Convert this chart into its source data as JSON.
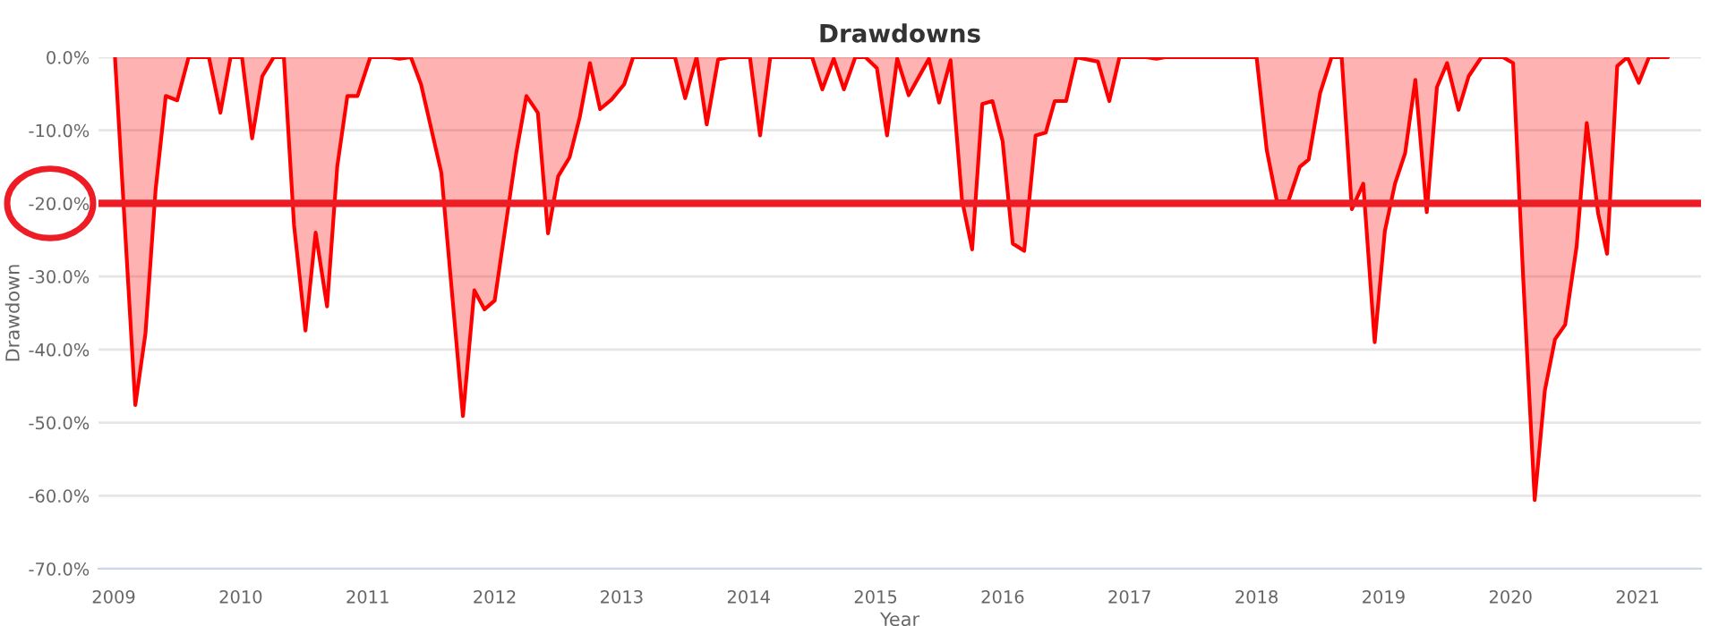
{
  "chart_data": {
    "type": "area",
    "title": "Drawdowns",
    "xlabel": "Year",
    "ylabel": "Drawdown",
    "series": [
      {
        "color": "#ff0000",
        "x": [
          2009.01,
          2009.17,
          2009.25,
          2009.33,
          2009.41,
          2009.5,
          2009.59,
          2009.75,
          2009.84,
          2009.92,
          2010.01,
          2010.09,
          2010.17,
          2010.26,
          2010.34,
          2010.42,
          2010.51,
          2010.59,
          2010.68,
          2010.76,
          2010.84,
          2010.92,
          2011.02,
          2011.18,
          2011.25,
          2011.34,
          2011.42,
          2011.58,
          2011.75,
          2011.84,
          2011.92,
          2012.0,
          2012.17,
          2012.25,
          2012.34,
          2012.42,
          2012.5,
          2012.59,
          2012.67,
          2012.75,
          2012.83,
          2012.92,
          2013.02,
          2013.09,
          2013.42,
          2013.5,
          2013.59,
          2013.67,
          2013.76,
          2013.84,
          2014.01,
          2014.09,
          2014.17,
          2014.5,
          2014.58,
          2014.67,
          2014.75,
          2014.84,
          2014.92,
          2015.01,
          2015.09,
          2015.17,
          2015.26,
          2015.42,
          2015.5,
          2015.59,
          2015.68,
          2015.76,
          2015.84,
          2015.92,
          2016.0,
          2016.08,
          2016.17,
          2016.26,
          2016.34,
          2016.41,
          2016.5,
          2016.58,
          2016.75,
          2016.84,
          2016.92,
          2017.13,
          2017.21,
          2017.28,
          2018.0,
          2018.08,
          2018.16,
          2018.25,
          2018.34,
          2018.41,
          2018.5,
          2018.59,
          2018.67,
          2018.75,
          2018.84,
          2018.93,
          2019.01,
          2019.09,
          2019.17,
          2019.25,
          2019.34,
          2019.42,
          2019.5,
          2019.59,
          2019.67,
          2019.77,
          2019.94,
          2020.02,
          2020.1,
          2020.19,
          2020.27,
          2020.35,
          2020.43,
          2020.52,
          2020.6,
          2020.69,
          2020.76,
          2020.84,
          2020.92,
          2021.01,
          2021.09,
          2021.24
        ],
        "values": [
          0,
          -47.6,
          -37.8,
          -18.1,
          -5.3,
          -5.9,
          0,
          0,
          -7.6,
          0,
          0,
          -11.1,
          -2.6,
          0,
          0,
          -23.0,
          -37.4,
          -24.0,
          -34.1,
          -15.0,
          -5.3,
          -5.3,
          0,
          0,
          -0.2,
          0,
          -3.7,
          -15.8,
          -49.1,
          -31.9,
          -34.5,
          -33.3,
          -13.1,
          -5.3,
          -7.6,
          -24.1,
          -16.3,
          -13.7,
          -8.2,
          -0.8,
          -7.1,
          -5.8,
          -3.7,
          0,
          0,
          -5.6,
          0,
          -9.2,
          -0.3,
          0,
          0,
          -10.7,
          0,
          0,
          -4.4,
          -0.2,
          -4.4,
          0,
          0,
          -1.5,
          -10.7,
          -0.2,
          -5.2,
          -0.2,
          -6.2,
          -0.4,
          -19.5,
          -26.3,
          -6.4,
          -6.0,
          -11.5,
          -25.5,
          -26.5,
          -10.7,
          -10.3,
          -6.0,
          -6.0,
          0,
          -0.6,
          -6.0,
          0,
          0,
          -0.2,
          0,
          0,
          -12.7,
          -19.7,
          -19.7,
          -15.0,
          -14.0,
          -4.9,
          0,
          0,
          -20.8,
          -17.3,
          -39.0,
          -23.8,
          -17.3,
          -13.1,
          -3.1,
          -21.2,
          -4.1,
          -0.8,
          -7.2,
          -2.6,
          0,
          0,
          -0.8,
          -30.4,
          -60.6,
          -45.6,
          -38.6,
          -36.6,
          -25.9,
          -9.0,
          -21.4,
          -26.9,
          -1.2,
          0,
          -3.5,
          0,
          0
        ]
      }
    ],
    "xlim": [
      2008.88,
      2021.5
    ],
    "xticks": [
      {
        "value": 2009,
        "label": "2009"
      },
      {
        "value": 2010,
        "label": "2010"
      },
      {
        "value": 2011,
        "label": "2011"
      },
      {
        "value": 2012,
        "label": "2012"
      },
      {
        "value": 2013,
        "label": "2013"
      },
      {
        "value": 2014,
        "label": "2014"
      },
      {
        "value": 2015,
        "label": "2015"
      },
      {
        "value": 2016,
        "label": "2016"
      },
      {
        "value": 2017,
        "label": "2017"
      },
      {
        "value": 2018,
        "label": "2018"
      },
      {
        "value": 2019,
        "label": "2019"
      },
      {
        "value": 2020,
        "label": "2020"
      },
      {
        "value": 2021,
        "label": "2021"
      }
    ],
    "ylim": [
      -70,
      0
    ],
    "yticks": [
      {
        "value": 0,
        "label": "0.0%"
      },
      {
        "value": -10,
        "label": "-10.0%"
      },
      {
        "value": -20,
        "label": "-20.0%"
      },
      {
        "value": -30,
        "label": "-30.0%"
      },
      {
        "value": -40,
        "label": "-40.0%"
      },
      {
        "value": -50,
        "label": "-50.0%"
      },
      {
        "value": -60,
        "label": "-60.0%"
      },
      {
        "value": -70,
        "label": "-70.0%"
      }
    ],
    "ref_lines": [
      {
        "axis": "y",
        "value": -20,
        "color": "#ee1c25"
      }
    ],
    "grid": "y",
    "legend": false,
    "marker": "none",
    "line_style": "solid"
  }
}
